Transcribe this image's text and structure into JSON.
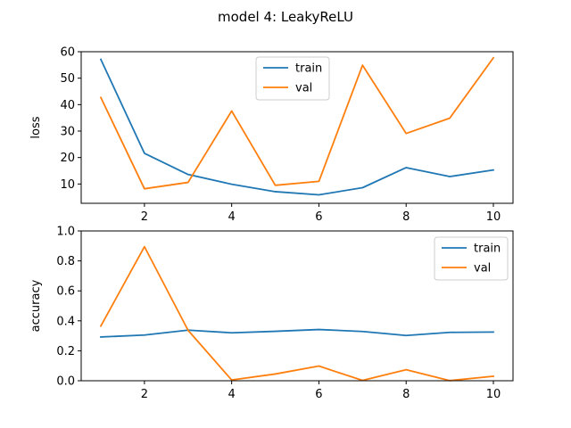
{
  "figure": {
    "suptitle": "model 4: LeakyReLU"
  },
  "colors": {
    "train": "#1f77b4",
    "val": "#ff7f0e"
  },
  "chart_data": [
    {
      "type": "line",
      "title": "",
      "xlabel": "",
      "ylabel": "loss",
      "x": [
        1,
        2,
        3,
        4,
        5,
        6,
        7,
        8,
        9,
        10
      ],
      "xlim": [
        0.55,
        10.45
      ],
      "ylim": [
        2.7,
        60
      ],
      "xticks": [
        2,
        4,
        6,
        8,
        10
      ],
      "yticks": [
        10,
        20,
        30,
        40,
        50,
        60
      ],
      "legend": "upper center",
      "grid": false,
      "series": [
        {
          "name": "train",
          "values": [
            57.1,
            21.6,
            13.6,
            9.9,
            7.1,
            5.9,
            8.6,
            16.2,
            12.8,
            15.3
          ]
        },
        {
          "name": "val",
          "values": [
            42.7,
            8.2,
            10.6,
            37.6,
            9.5,
            11.0,
            54.9,
            29.1,
            34.9,
            57.7
          ]
        }
      ]
    },
    {
      "type": "line",
      "title": "",
      "xlabel": "",
      "ylabel": "accuracy",
      "x": [
        1,
        2,
        3,
        4,
        5,
        6,
        7,
        8,
        9,
        10
      ],
      "xlim": [
        0.55,
        10.45
      ],
      "ylim": [
        0,
        1.0
      ],
      "xticks": [
        2,
        4,
        6,
        8,
        10
      ],
      "yticks": [
        0.0,
        0.2,
        0.4,
        0.6,
        0.8,
        1.0
      ],
      "legend": "upper right",
      "grid": false,
      "series": [
        {
          "name": "train",
          "values": [
            0.292,
            0.305,
            0.338,
            0.32,
            0.33,
            0.342,
            0.329,
            0.302,
            0.323,
            0.325
          ]
        },
        {
          "name": "val",
          "values": [
            0.365,
            0.895,
            0.337,
            0.005,
            0.045,
            0.098,
            0.002,
            0.074,
            0.001,
            0.03
          ]
        }
      ]
    }
  ]
}
